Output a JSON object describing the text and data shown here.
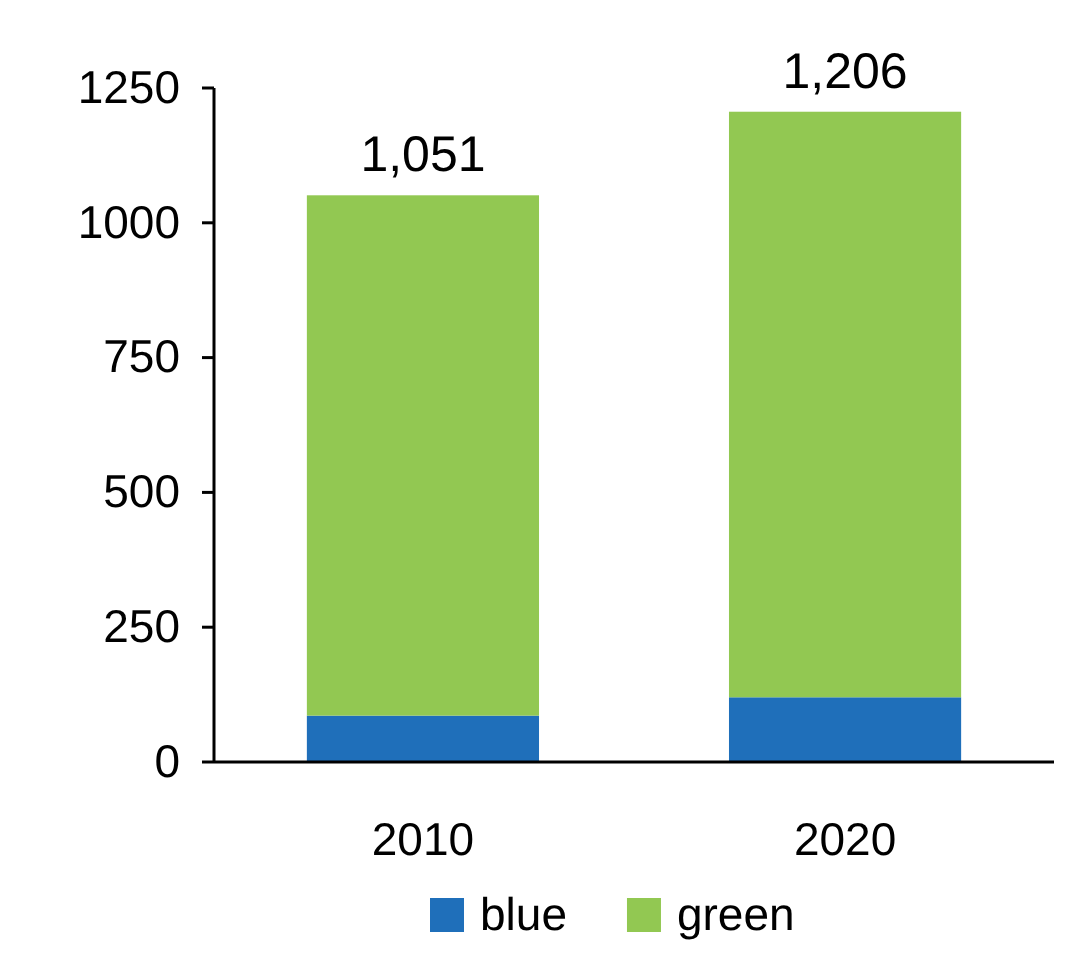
{
  "chart_data": {
    "type": "bar",
    "stacked": true,
    "categories": [
      "2010",
      "2020"
    ],
    "series": [
      {
        "name": "blue",
        "color": "#1f6fba",
        "values": [
          86,
          120
        ]
      },
      {
        "name": "green",
        "color": "#92c852",
        "values": [
          965,
          1086
        ]
      }
    ],
    "ylim": [
      0,
      1250
    ],
    "yticks": [
      0,
      250,
      500,
      750,
      1000,
      1250
    ],
    "totals": [
      "1,051",
      "1,206"
    ],
    "legend": "bottom",
    "grid": false
  }
}
